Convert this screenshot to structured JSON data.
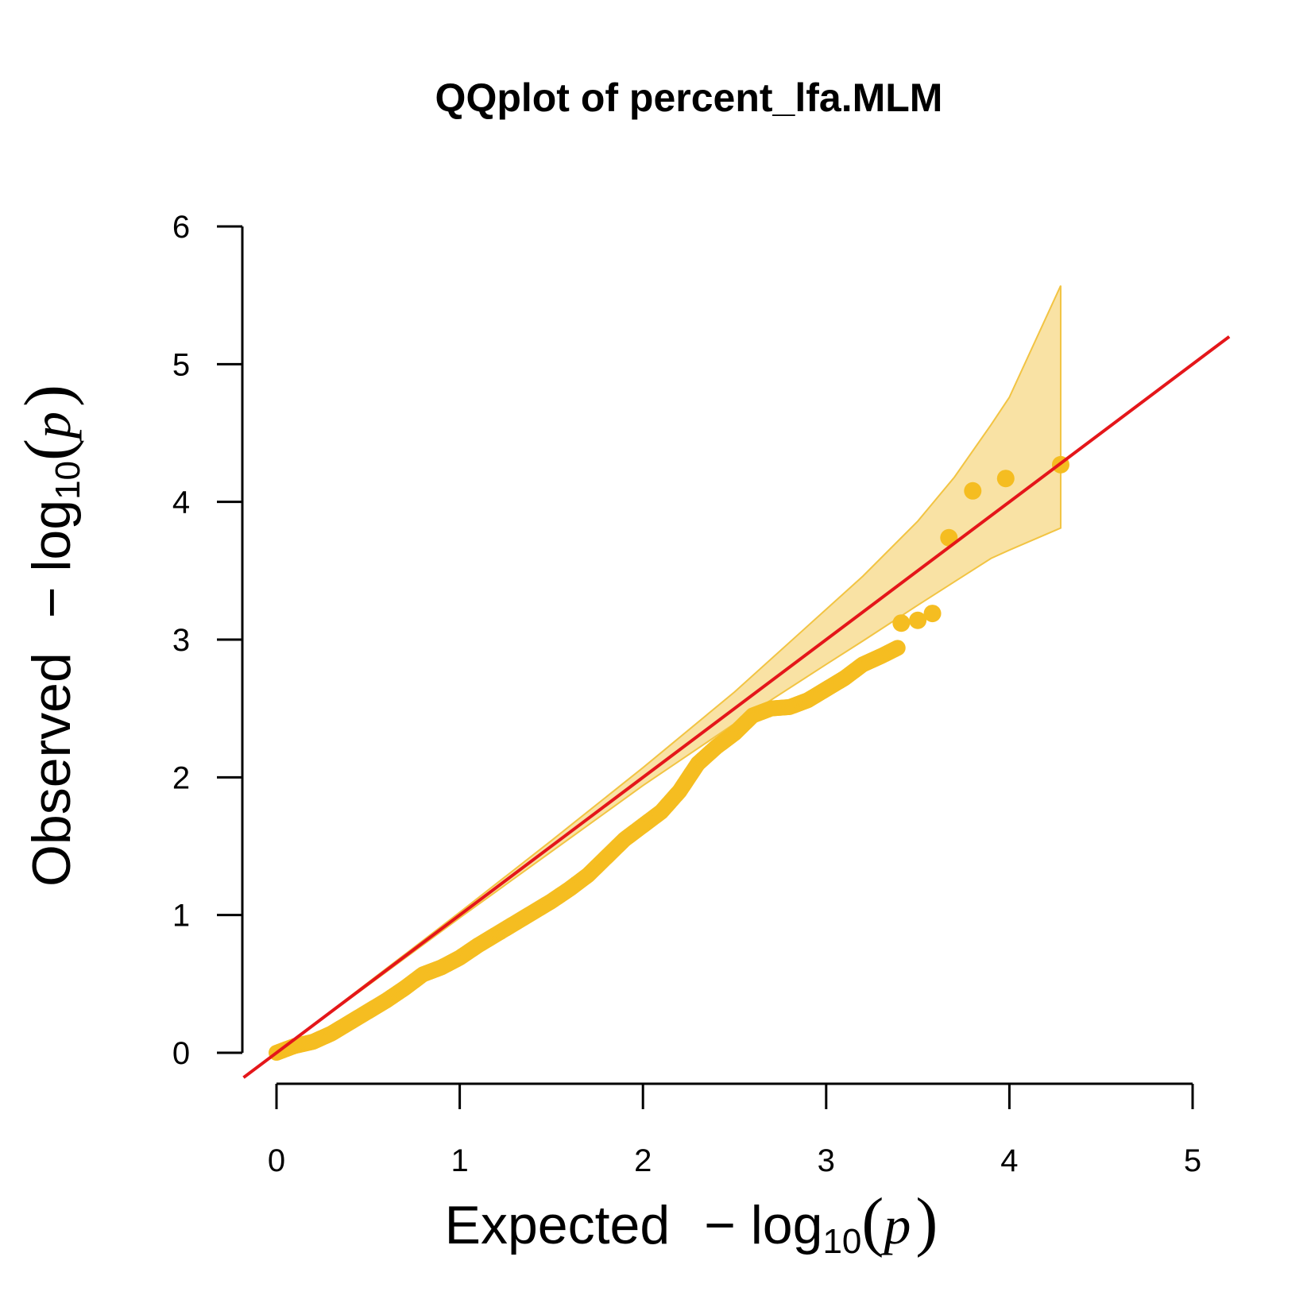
{
  "chart_data": {
    "type": "scatter",
    "title": "QQplot of percent_lfa.MLM",
    "xlabel": {
      "word": "Expected",
      "minus": "−",
      "log": "log",
      "base": "10",
      "open_paren": "(",
      "var": "p",
      "close_paren": ")"
    },
    "ylabel": {
      "word": "Observed",
      "minus": "−",
      "log": "log",
      "base": "10",
      "open_paren": "(",
      "var": "p",
      "close_paren": ")"
    },
    "xlim": [
      0,
      5
    ],
    "ylim": [
      0,
      6
    ],
    "x_ticks": [
      0,
      1,
      2,
      3,
      4,
      5
    ],
    "y_ticks": [
      0,
      1,
      2,
      3,
      4,
      5,
      6
    ],
    "x_tick_labels": [
      "0",
      "1",
      "2",
      "3",
      "4",
      "5"
    ],
    "y_tick_labels": [
      "0",
      "1",
      "2",
      "3",
      "4",
      "5",
      "6"
    ],
    "grid": false,
    "colors": {
      "points": "#f5bd21",
      "band_fill": "#f9e2a4",
      "band_edge": "#f2c443",
      "reference_line": "#e4161a",
      "axis": "#000000"
    },
    "reference_line": {
      "intercept": 0,
      "slope": 1
    },
    "confidence_band": {
      "x": [
        0.0,
        0.5,
        1.0,
        1.5,
        2.0,
        2.5,
        3.0,
        3.2,
        3.5,
        3.7,
        3.9,
        4.0,
        4.28
      ],
      "upper": [
        0.0,
        0.51,
        1.02,
        1.54,
        2.07,
        2.62,
        3.22,
        3.46,
        3.86,
        4.18,
        4.56,
        4.76,
        5.57
      ],
      "lower": [
        0.0,
        0.49,
        0.98,
        1.46,
        1.94,
        2.39,
        2.82,
        2.99,
        3.25,
        3.42,
        3.59,
        3.65,
        3.81
      ]
    },
    "points_curve": {
      "x": [
        0.0,
        0.1,
        0.2,
        0.3,
        0.4,
        0.5,
        0.6,
        0.7,
        0.8,
        0.9,
        1.0,
        1.1,
        1.2,
        1.3,
        1.4,
        1.5,
        1.6,
        1.7,
        1.8,
        1.9,
        2.0,
        2.1,
        2.2,
        2.3,
        2.4,
        2.5,
        2.6,
        2.7,
        2.8,
        2.9,
        3.0,
        3.1,
        3.2,
        3.3,
        3.39
      ],
      "y": [
        0.0,
        0.05,
        0.08,
        0.14,
        0.22,
        0.3,
        0.38,
        0.47,
        0.57,
        0.62,
        0.69,
        0.78,
        0.86,
        0.94,
        1.02,
        1.1,
        1.19,
        1.29,
        1.42,
        1.55,
        1.65,
        1.75,
        1.9,
        2.1,
        2.22,
        2.32,
        2.45,
        2.5,
        2.51,
        2.56,
        2.64,
        2.72,
        2.82,
        2.88,
        2.94
      ]
    },
    "points": [
      {
        "x": 3.41,
        "y": 3.12
      },
      {
        "x": 3.5,
        "y": 3.14
      },
      {
        "x": 3.58,
        "y": 3.19
      },
      {
        "x": 3.67,
        "y": 3.74
      },
      {
        "x": 3.8,
        "y": 4.08
      },
      {
        "x": 3.98,
        "y": 4.17
      },
      {
        "x": 4.28,
        "y": 4.27
      }
    ]
  }
}
